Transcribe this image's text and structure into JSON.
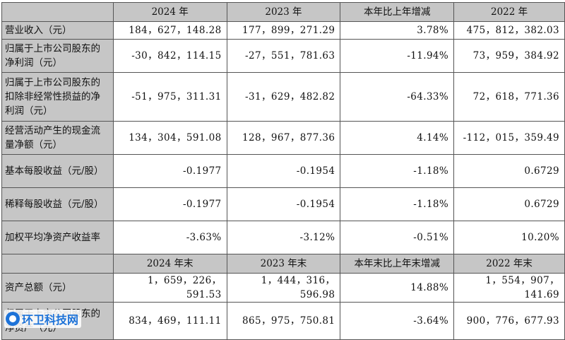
{
  "header1": [
    "",
    "2024 年",
    "2023 年",
    "本年比上年增减",
    "2022 年"
  ],
  "rows1": [
    {
      "label": "营业收入（元）",
      "values": [
        "184，627，148.28",
        "177，899，271.29",
        "3.78%",
        "475，812，382.03"
      ]
    },
    {
      "label": "归属于上市公司股东的净利润（元）",
      "values": [
        "-30，842，114.15",
        "-27，551，781.63",
        "-11.94%",
        "73，959，384.92"
      ]
    },
    {
      "label": "归属于上市公司股东的扣除非经常性损益的净利润（元）",
      "values": [
        "-51，975，311.31",
        "-31，629，482.82",
        "-64.33%",
        "72，618，771.36"
      ]
    },
    {
      "label": "经营活动产生的现金流量净额（元）",
      "values": [
        "134，304，591.08",
        "128，967，877.36",
        "4.14%",
        "-112，015，359.49"
      ]
    },
    {
      "label": "基本每股收益（元/股）",
      "values": [
        "-0.1977",
        "-0.1954",
        "-1.18%",
        "0.6729"
      ]
    },
    {
      "label": "稀释每股收益（元/股）",
      "values": [
        "-0.1977",
        "-0.1954",
        "-1.18%",
        "0.6729"
      ]
    },
    {
      "label": "加权平均净资产收益率",
      "values": [
        "-3.63%",
        "-3.12%",
        "-0.51%",
        "10.20%"
      ]
    }
  ],
  "header2": [
    "",
    "2024 年末",
    "2023 年末",
    "本年末比上年末增减",
    "2022 年末"
  ],
  "rows2": [
    {
      "label": "资产总额（元）",
      "values": [
        "1，659，226，591.53",
        "1，444，316，596.98",
        "14.88%",
        "1，554，907，141.69"
      ]
    },
    {
      "label": "归属于上市公司股东的净资产（元）",
      "values": [
        "834，469，111.11",
        "865，975，750.81",
        "-3.64%",
        "900，776，677.93"
      ]
    }
  ],
  "watermark": "环卫科技网",
  "colors": {
    "header_bg": "#c6c6c6",
    "border": "#555555",
    "watermark": "#1e73d8"
  }
}
